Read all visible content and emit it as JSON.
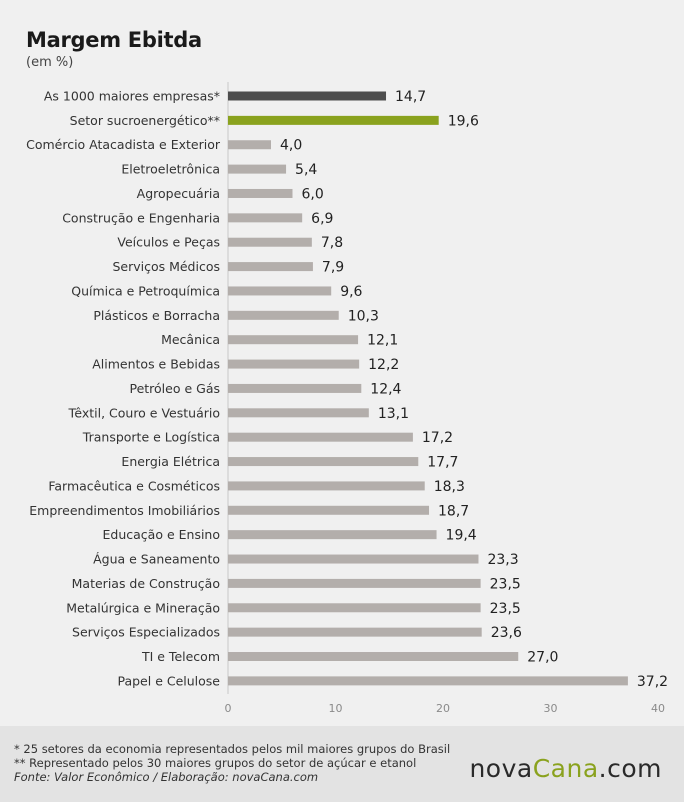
{
  "title": "Margem Ebitda",
  "subtitle": "(em %)",
  "footer": {
    "note1": "* 25 setores da economia representados pelos mil maiores grupos do Brasil",
    "note2": "** Representado pelos 30 maiores grupos do setor de açúcar e etanol",
    "source": "Fonte: Valor Econômico / Elaboração: novaCana.com"
  },
  "logo": {
    "part1": "nova",
    "part2": "Cana",
    "part3": ".com"
  },
  "colors": {
    "highlight_dark": "#4d4d4d",
    "highlight_green": "#8aa21e",
    "default_bar": "#b3aeab",
    "accent": "#8aa21e"
  },
  "chart_data": {
    "type": "bar",
    "orientation": "horizontal",
    "title": "Margem Ebitda",
    "subtitle": "(em %)",
    "xlim": [
      0,
      40
    ],
    "xticks": [
      0,
      10,
      20,
      30,
      40
    ],
    "grid": false,
    "categories": [
      "As 1000 maiores empresas*",
      "Setor sucroenergético**",
      "Comércio Atacadista e Exterior",
      "Eletroeletrônica",
      "Agropecuária",
      "Construção e Engenharia",
      "Veículos e Peças",
      "Serviços Médicos",
      "Química e Petroquímica",
      "Plásticos e Borracha",
      "Mecânica",
      "Alimentos e Bebidas",
      "Petróleo e Gás",
      "Têxtil, Couro e Vestuário",
      "Transporte e Logística",
      "Energia Elétrica",
      "Farmacêutica e Cosméticos",
      "Empreendimentos Imobiliários",
      "Educação e Ensino",
      "Água e Saneamento",
      "Materias de Construção",
      "Metalúrgica e Mineração",
      "Serviços Especializados",
      "TI e Telecom",
      "Papel e Celulose"
    ],
    "values": [
      14.7,
      19.6,
      4.0,
      5.4,
      6.0,
      6.9,
      7.8,
      7.9,
      9.6,
      10.3,
      12.1,
      12.2,
      12.4,
      13.1,
      17.2,
      17.7,
      18.3,
      18.7,
      19.4,
      23.3,
      23.5,
      23.5,
      23.6,
      27.0,
      37.2
    ],
    "value_labels": [
      "14,7",
      "19,6",
      "4,0",
      "5,4",
      "6,0",
      "6,9",
      "7,8",
      "7,9",
      "9,6",
      "10,3",
      "12,1",
      "12,2",
      "12,4",
      "13,1",
      "17,2",
      "17,7",
      "18,3",
      "18,7",
      "19,4",
      "23,3",
      "23,5",
      "23,5",
      "23,6",
      "27,0",
      "37,2"
    ],
    "bar_colors": [
      "dark",
      "green",
      "default",
      "default",
      "default",
      "default",
      "default",
      "default",
      "default",
      "default",
      "default",
      "default",
      "default",
      "default",
      "default",
      "default",
      "default",
      "default",
      "default",
      "default",
      "default",
      "default",
      "default",
      "default",
      "default"
    ]
  }
}
